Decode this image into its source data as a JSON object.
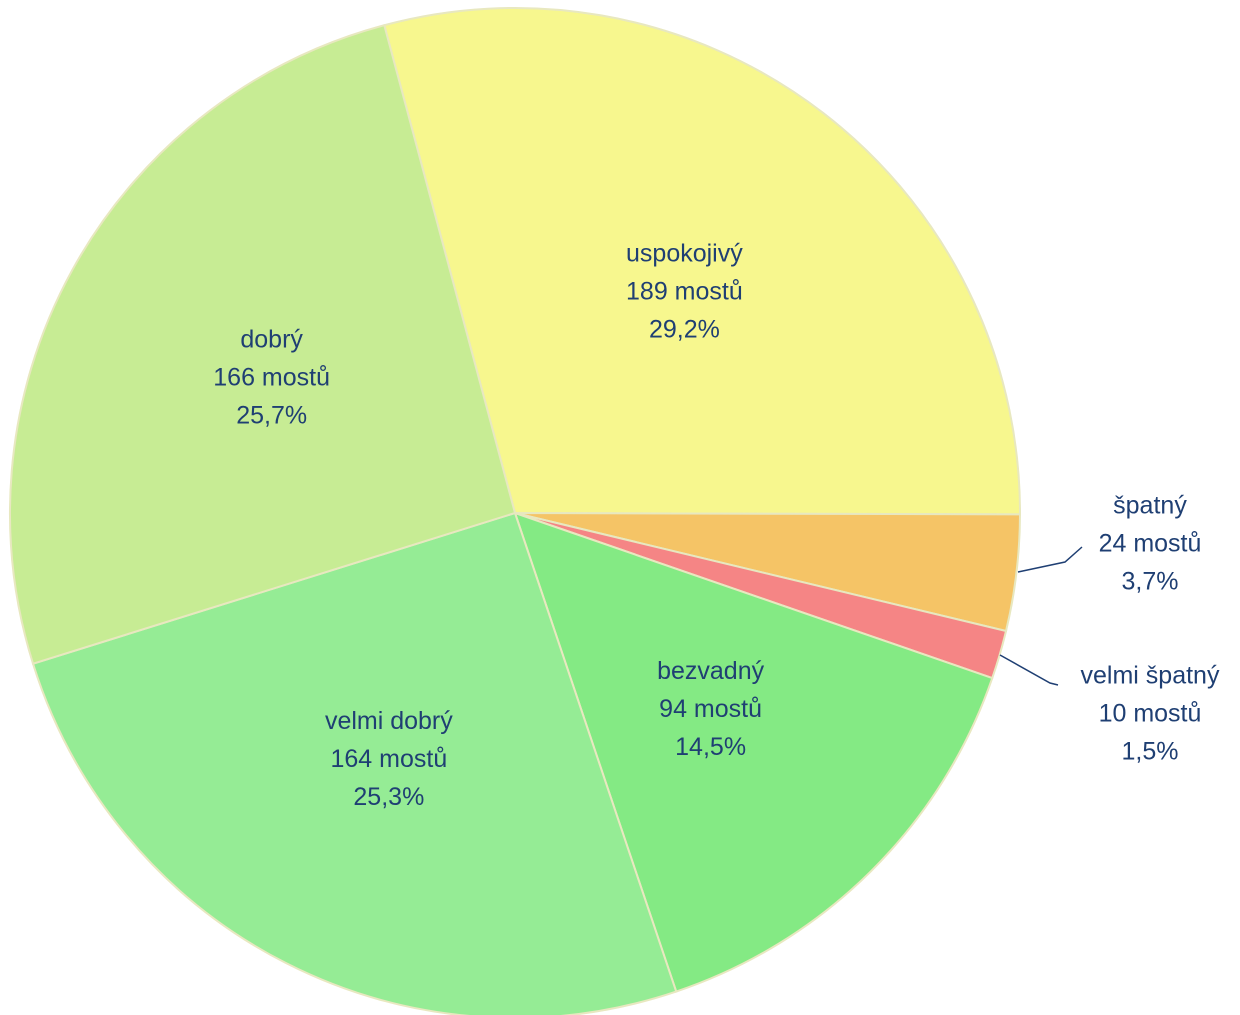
{
  "chart_data": {
    "type": "pie",
    "categories": [
      "uspokojivý",
      "špatný",
      "velmi špatný",
      "bezvadný",
      "velmi dobrý",
      "dobrý"
    ],
    "values": [
      189,
      24,
      10,
      94,
      164,
      166
    ],
    "value_labels": [
      "189 mostů",
      "24 mostů",
      "10 mostů",
      "94 mostů",
      "164 mostů",
      "166 mostů"
    ],
    "percent_labels": [
      "29,2%",
      "3,7%",
      "1,5%",
      "14,5%",
      "25,3%",
      "25,7%"
    ],
    "colors": [
      "#f7f78e",
      "#f5c466",
      "#f58585",
      "#84ea84",
      "#95ec95",
      "#c7ec94"
    ]
  }
}
